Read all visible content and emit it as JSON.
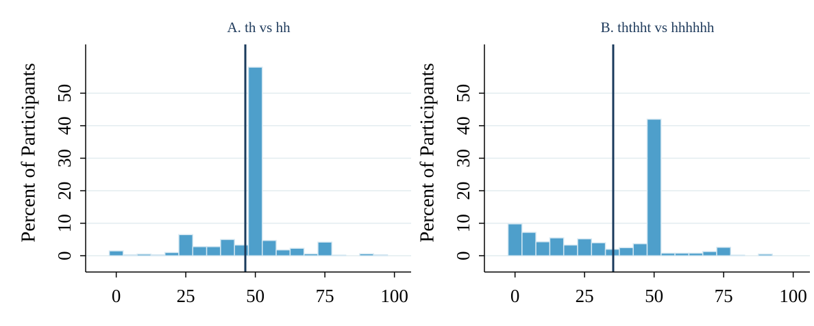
{
  "chart_data": [
    {
      "type": "histogram",
      "title": "A. th vs hh",
      "y_label": "Percent of Participants",
      "bins": [
        -2.5,
        2.5,
        7.5,
        12.5,
        17.5,
        22.5,
        27.5,
        32.5,
        37.5,
        42.5,
        47.5,
        52.5,
        57.5,
        62.5,
        67.5,
        72.5,
        77.5,
        82.5,
        87.5,
        92.5,
        97.5
      ],
      "values": [
        1.5,
        0.3,
        0.5,
        0.3,
        1.0,
        6.5,
        2.8,
        2.8,
        5.0,
        3.3,
        58,
        4.7,
        1.8,
        2.3,
        0.6,
        4.2,
        0.2,
        0,
        0.6,
        0.3
      ],
      "color": "#4e9fcb",
      "vline": 46.4,
      "vline_color": "#1a3a5c",
      "xlim": [
        -11,
        106
      ],
      "xticks": [
        0,
        25,
        50,
        75,
        100
      ],
      "ylim": [
        -5,
        65
      ],
      "yticks": [
        0,
        10,
        20,
        30,
        40,
        50
      ],
      "grid": true
    },
    {
      "type": "histogram",
      "title": "B. ththht vs hhhhhh",
      "y_label": "Percent of Participants",
      "bins": [
        -2.5,
        2.5,
        7.5,
        12.5,
        17.5,
        22.5,
        27.5,
        32.5,
        37.5,
        42.5,
        47.5,
        52.5,
        57.5,
        62.5,
        67.5,
        72.5,
        77.5,
        82.5,
        87.5,
        92.5,
        97.5
      ],
      "values": [
        9.8,
        7.2,
        4.3,
        5.5,
        3.3,
        5.2,
        4.0,
        2.0,
        2.5,
        3.7,
        42,
        0.8,
        0.8,
        0.8,
        1.3,
        2.6,
        0.2,
        0,
        0.5,
        0
      ],
      "color": "#4e9fcb",
      "vline": 35.3,
      "vline_color": "#1a3a5c",
      "xlim": [
        -11,
        106
      ],
      "xticks": [
        0,
        25,
        50,
        75,
        100
      ],
      "ylim": [
        -5,
        65
      ],
      "yticks": [
        0,
        10,
        20,
        30,
        40,
        50
      ],
      "grid": true
    }
  ]
}
